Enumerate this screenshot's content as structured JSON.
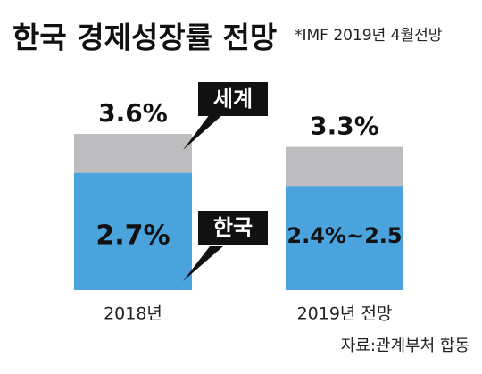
{
  "chart_data": {
    "type": "bar",
    "title": "한국 경제성장률 전망",
    "subtitle": "*IMF 2019년 4월전망",
    "source": "자료:관계부처 합동",
    "categories": [
      "2018년",
      "2019년 전망"
    ],
    "series": [
      {
        "name": "세계",
        "color": "#bdbdbf",
        "values": [
          3.6,
          3.3
        ],
        "value_labels": [
          "3.6%",
          "3.3%"
        ]
      },
      {
        "name": "한국",
        "color": "#4aa3dc",
        "values": [
          2.7,
          2.4
        ],
        "value_labels": [
          "2.7%",
          "2.4%~2.5"
        ]
      }
    ]
  }
}
